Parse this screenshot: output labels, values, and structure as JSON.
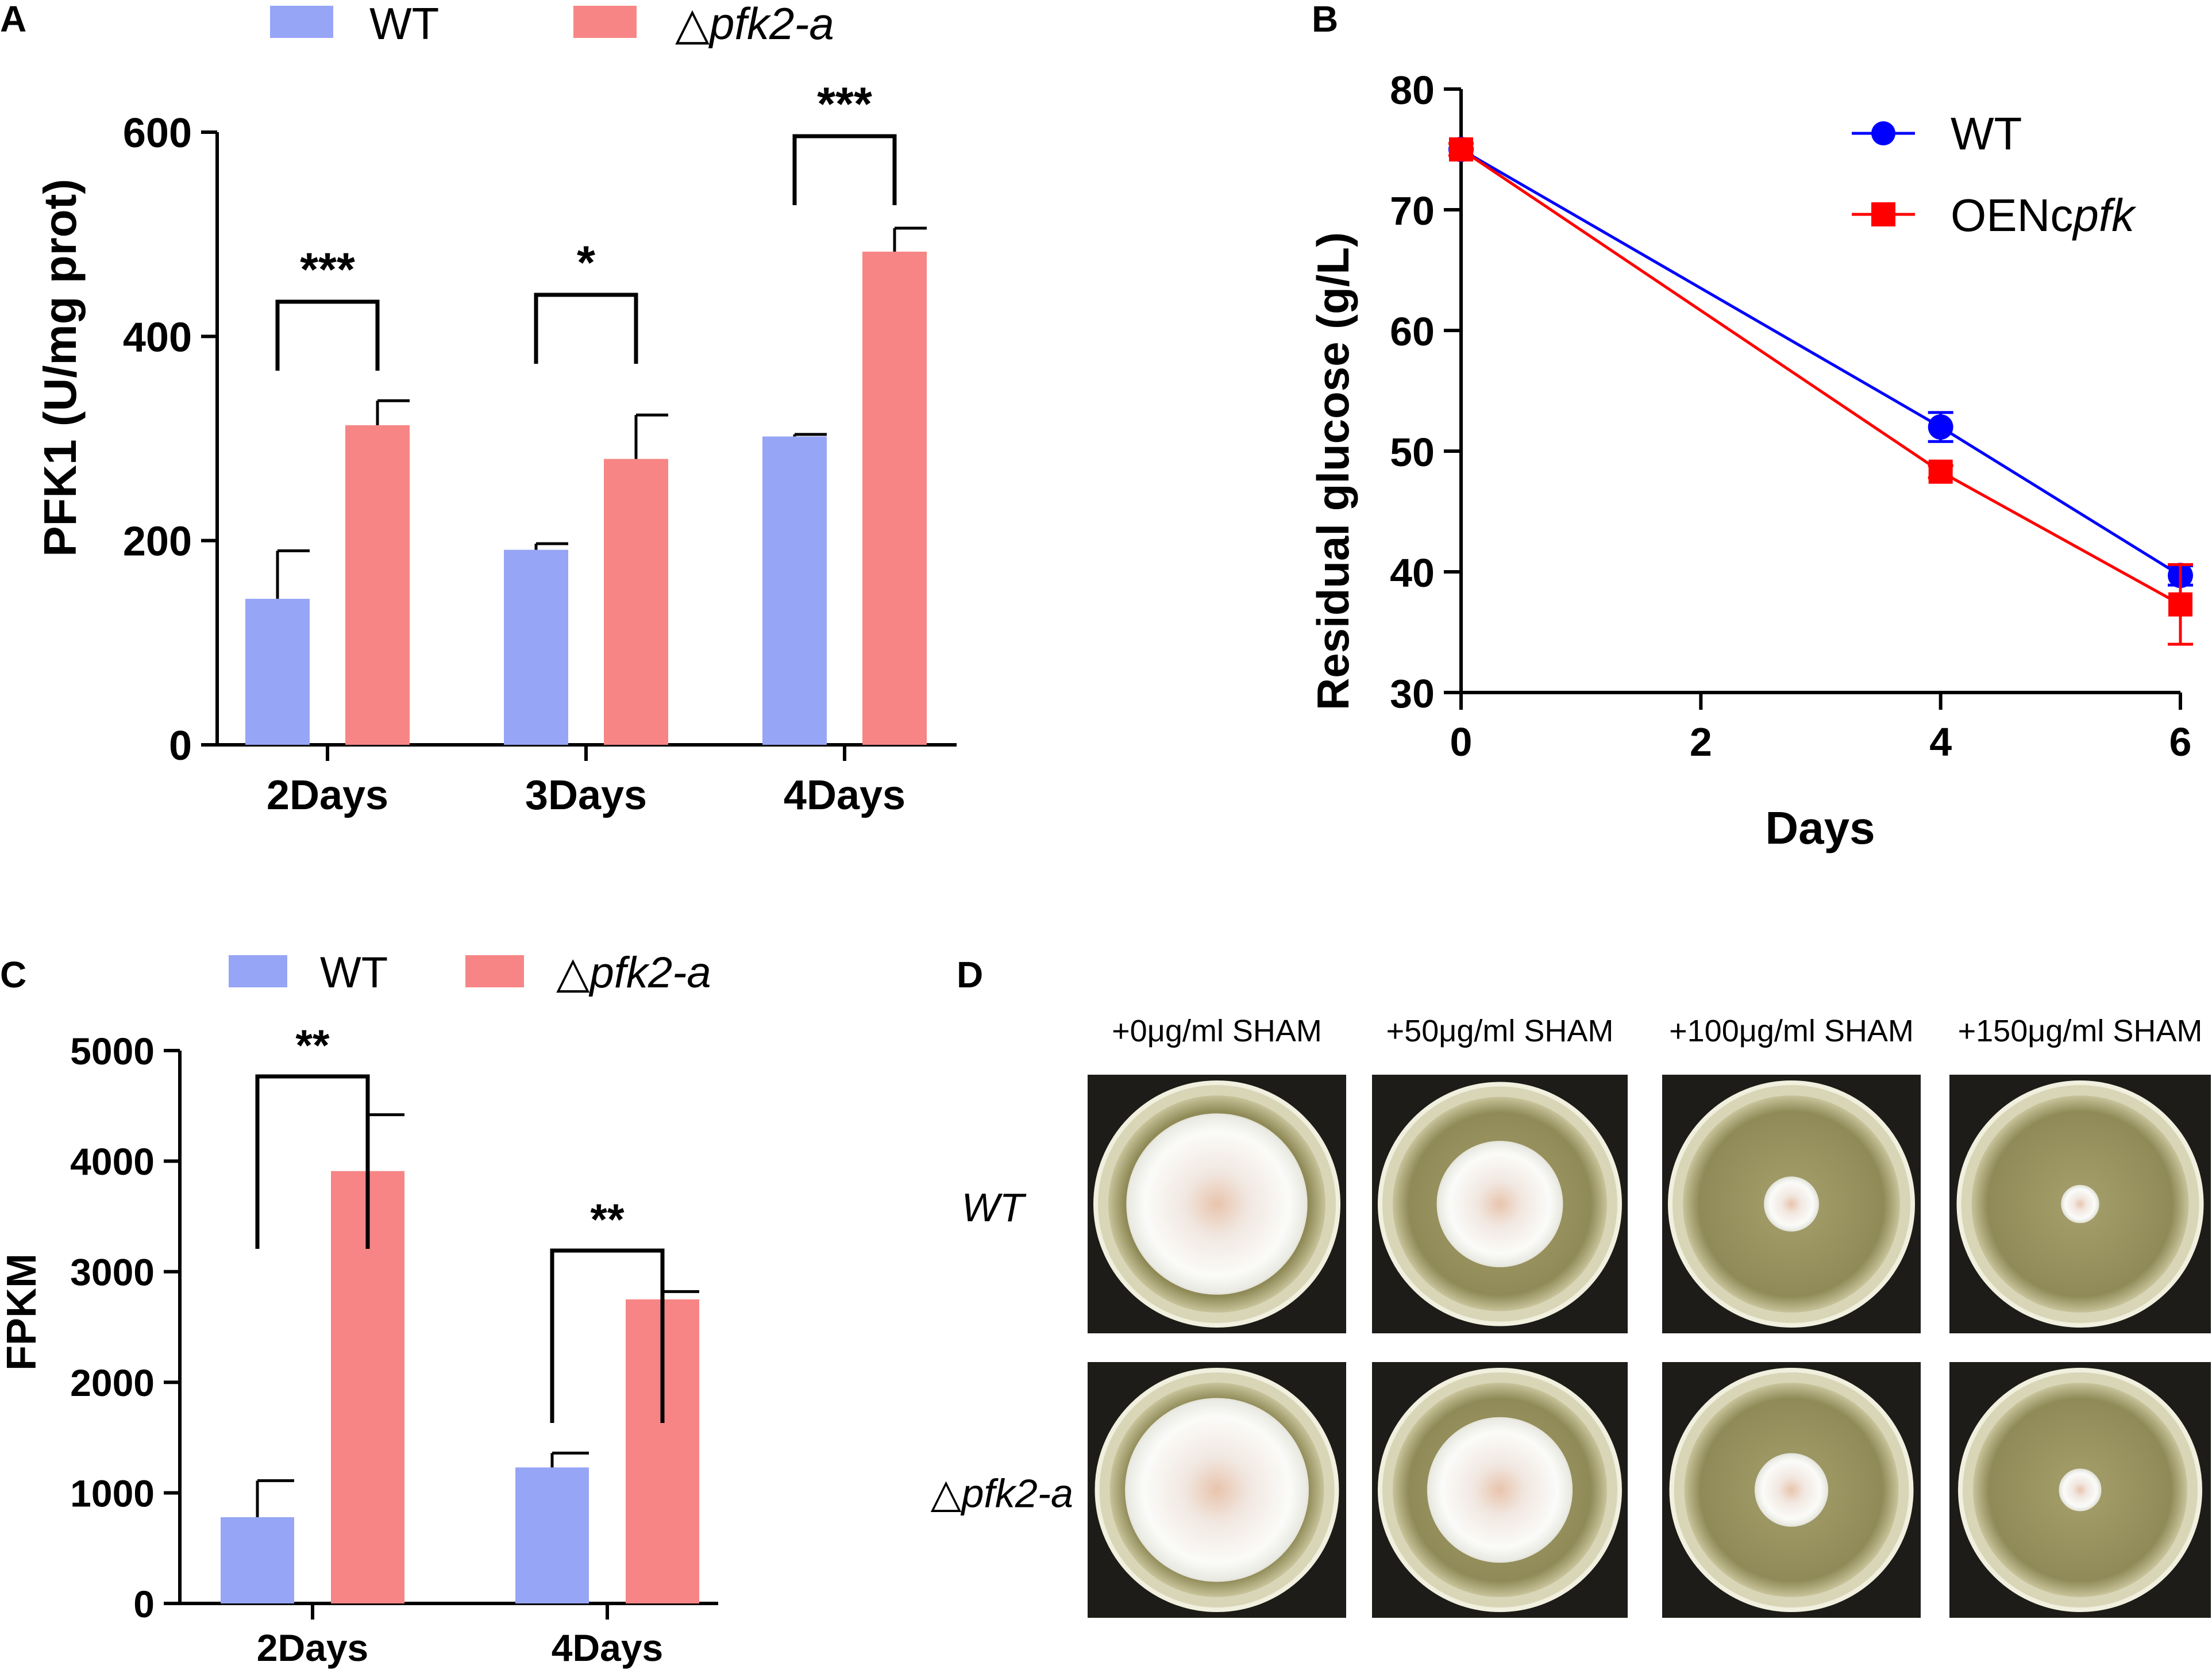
{
  "panels": {
    "A": "A",
    "B": "B",
    "C": "C",
    "D": "D"
  },
  "colors": {
    "wt_bar": "#97a5f7",
    "mut_bar": "#f78585",
    "wt_line": "#0000ff",
    "oe_line": "#ff0000"
  },
  "chart_data": [
    {
      "id": "A",
      "type": "bar",
      "categories": [
        "2Days",
        "3Days",
        "4Days"
      ],
      "series": [
        {
          "name": "WT",
          "values": [
            143,
            191,
            302
          ],
          "errors": [
            47,
            6,
            2
          ]
        },
        {
          "name": "pfk2-a",
          "values": [
            313,
            280,
            483
          ],
          "errors": [
            24,
            43,
            23
          ]
        }
      ],
      "legend": [
        {
          "prefix": "",
          "name": "WT"
        },
        {
          "prefix": "△",
          "name": "pfk2-a"
        }
      ],
      "ylabel": "PFK1 (U/mg prot)",
      "ylim": [
        0,
        600
      ],
      "yticks": [
        "0",
        "200",
        "400",
        "600"
      ],
      "significance": [
        {
          "category": "2Days",
          "label": "***"
        },
        {
          "category": "3Days",
          "label": "*"
        },
        {
          "category": "4Days",
          "label": "***"
        }
      ]
    },
    {
      "id": "B",
      "type": "line",
      "x": [
        0,
        4,
        6
      ],
      "series": [
        {
          "name": "WT",
          "values": [
            75,
            52,
            39.7
          ],
          "errors": [
            0.5,
            1.2,
            0.8
          ]
        },
        {
          "name": "OENcpfk",
          "values": [
            75,
            48.3,
            37.3
          ],
          "errors": [
            0.5,
            0.5,
            3.3
          ]
        }
      ],
      "legend": [
        {
          "name": "WT",
          "prefix": "",
          "italic": ""
        },
        {
          "name": "OENcpfk",
          "prefix": "OENc",
          "italic": "pfk"
        }
      ],
      "xlabel": "Days",
      "ylabel": "Residual glucose (g/L)",
      "xlim": [
        0,
        6
      ],
      "ylim": [
        30,
        80
      ],
      "xticks": [
        "0",
        "2",
        "4",
        "6"
      ],
      "yticks": [
        "30",
        "40",
        "50",
        "60",
        "70",
        "80"
      ]
    },
    {
      "id": "C",
      "type": "bar",
      "categories": [
        "2Days",
        "4Days"
      ],
      "series": [
        {
          "name": "WT",
          "values": [
            780,
            1230
          ],
          "errors": [
            330,
            130
          ]
        },
        {
          "name": "pfk2-a",
          "values": [
            3910,
            2750
          ],
          "errors": [
            510,
            70
          ]
        }
      ],
      "legend": [
        {
          "prefix": "",
          "name": "WT"
        },
        {
          "prefix": "△",
          "name": "pfk2-a"
        }
      ],
      "ylabel": "FPKM",
      "ylim": [
        0,
        5000
      ],
      "yticks": [
        "0",
        "1000",
        "2000",
        "3000",
        "4000",
        "5000"
      ],
      "significance": [
        {
          "category": "2Days",
          "label": "**"
        },
        {
          "category": "4Days",
          "label": "**"
        }
      ]
    }
  ],
  "plates": {
    "columns": [
      "+0μg/ml SHAM",
      "+50μg/ml SHAM",
      "+100μg/ml SHAM",
      "+150μg/ml SHAM"
    ],
    "rows": [
      {
        "prefix": "",
        "name": "WT",
        "colony_sizes": [
          0.74,
          0.52,
          0.22,
          0.15
        ]
      },
      {
        "prefix": "△",
        "name": "pfk2-a",
        "colony_sizes": [
          0.76,
          0.6,
          0.3,
          0.17
        ]
      }
    ]
  }
}
